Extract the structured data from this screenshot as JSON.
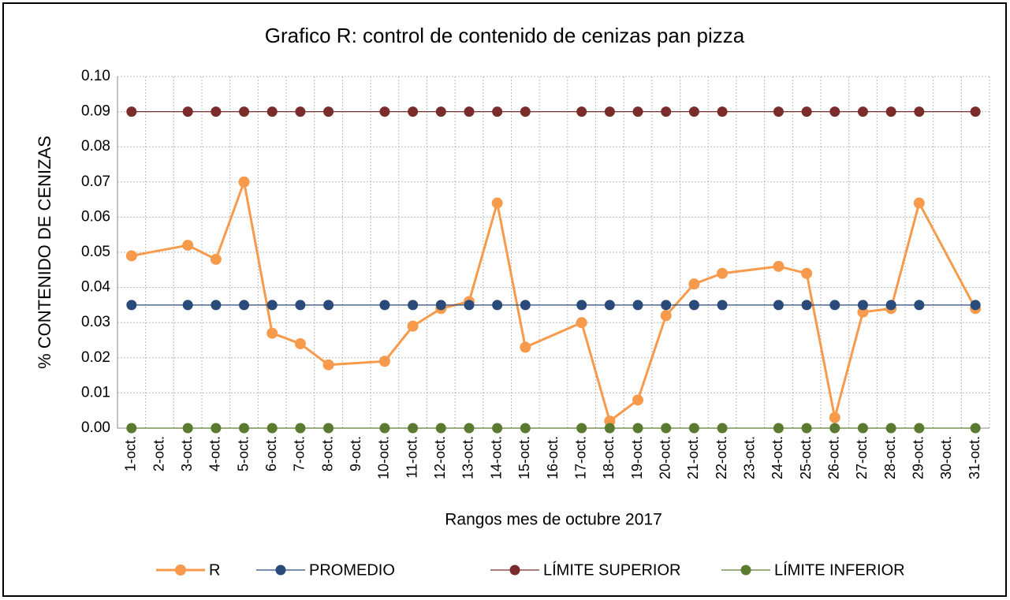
{
  "chart_data": {
    "type": "line",
    "title": "Grafico R: control de contenido de cenizas pan pizza",
    "x_label": "Rangos mes de octubre 2017",
    "y_label": "% CONTENIDO DE CENIZAS",
    "categories": [
      "1-oct.",
      "2-oct.",
      "3-oct.",
      "4-oct.",
      "5-oct.",
      "6-oct.",
      "7-oct.",
      "8-oct.",
      "9-oct.",
      "10-oct.",
      "11-oct.",
      "12-oct.",
      "13-oct.",
      "14-oct.",
      "15-oct.",
      "16-oct.",
      "17-oct.",
      "18-oct.",
      "19-oct.",
      "20-oct.",
      "21-oct.",
      "22-oct.",
      "23-oct.",
      "24-oct.",
      "25-oct.",
      "26-oct.",
      "27-oct.",
      "28-oct.",
      "29-oct.",
      "30-oct.",
      "31-oct."
    ],
    "series": [
      {
        "name": "R",
        "color": "#f79a4c",
        "values": [
          0.049,
          null,
          0.052,
          0.048,
          0.07,
          0.027,
          0.024,
          0.018,
          null,
          0.019,
          0.029,
          0.034,
          0.036,
          0.064,
          0.023,
          null,
          0.03,
          0.002,
          0.008,
          0.032,
          0.041,
          0.044,
          null,
          0.046,
          0.044,
          0.003,
          0.033,
          0.034,
          0.064,
          null,
          0.034
        ]
      },
      {
        "name": "PROMEDIO",
        "color": "#2a4a7a",
        "values": [
          0.035,
          null,
          0.035,
          0.035,
          0.035,
          0.035,
          0.035,
          0.035,
          null,
          0.035,
          0.035,
          0.035,
          0.035,
          0.035,
          0.035,
          null,
          0.035,
          0.035,
          0.035,
          0.035,
          0.035,
          0.035,
          null,
          0.035,
          0.035,
          0.035,
          0.035,
          0.035,
          0.035,
          null,
          0.035
        ]
      },
      {
        "name": "LÍMITE SUPERIOR",
        "color": "#7a2c2a",
        "values": [
          0.09,
          null,
          0.09,
          0.09,
          0.09,
          0.09,
          0.09,
          0.09,
          null,
          0.09,
          0.09,
          0.09,
          0.09,
          0.09,
          0.09,
          null,
          0.09,
          0.09,
          0.09,
          0.09,
          0.09,
          0.09,
          null,
          0.09,
          0.09,
          0.09,
          0.09,
          0.09,
          0.09,
          null,
          0.09
        ]
      },
      {
        "name": "LÍMITE INFERIOR",
        "color": "#5a7a30",
        "values": [
          0,
          null,
          0,
          0,
          0,
          0,
          0,
          0,
          null,
          0,
          0,
          0,
          0,
          0,
          0,
          null,
          0,
          0,
          0,
          0,
          0,
          0,
          null,
          0,
          0,
          0,
          0,
          0,
          0,
          null,
          0
        ]
      }
    ],
    "ylim": [
      0,
      0.1
    ],
    "yticks": [
      {
        "value": 0,
        "label": "0.00"
      },
      0.01,
      0.02,
      0.03,
      0.04,
      0.05,
      0.06,
      0.07,
      0.08,
      0.09,
      {
        "value": 0.1,
        "label": "0.10"
      }
    ],
    "grid": true,
    "legend": "bottom"
  }
}
